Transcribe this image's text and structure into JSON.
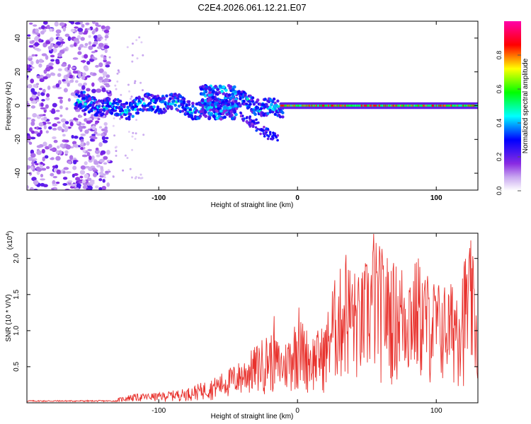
{
  "title": "C2E4.2026.061.12.21.E07",
  "chart_data": [
    {
      "type": "heatmap",
      "title": "C2E4.2026.061.12.21.E07",
      "xlabel": "Height of straight line (km)",
      "ylabel": "Frequency (Hz)",
      "xlim": [
        -195,
        130
      ],
      "ylim": [
        -50,
        50
      ],
      "xticks": [
        -100,
        0,
        100
      ],
      "yticks": [
        -40,
        -20,
        0,
        20,
        40
      ],
      "colorbar": {
        "label": "Normalized spectral amplitude",
        "range": [
          0,
          1
        ],
        "ticks": [
          "0.0",
          "0.2",
          "0.4",
          "0.6",
          "0.8"
        ],
        "colors": [
          "#ffffff",
          "#8a2be2",
          "#0000ff",
          "#00ffff",
          "#00ff00",
          "#ffff00",
          "#ff0000",
          "#ff00aa"
        ]
      },
      "description_regions": [
        {
          "x_range": [
            -195,
            -135
          ],
          "freq_range": [
            -50,
            50
          ],
          "amplitude": 0.1,
          "pattern": "scattered noise"
        },
        {
          "x_range": [
            -160,
            -10
          ],
          "freq_center": 0,
          "freq_halfwidth": 6,
          "amplitude": 0.4,
          "pattern": "wavy band"
        },
        {
          "x_range": [
            -70,
            -45
          ],
          "freq_range": [
            -8,
            12
          ],
          "amplitude": 0.35,
          "pattern": "blob"
        },
        {
          "x_range": [
            -40,
            -15
          ],
          "freq_range": [
            -22,
            -5
          ],
          "amplitude": 0.3,
          "pattern": "tail"
        },
        {
          "x_range": [
            -10,
            130
          ],
          "freq_center": 0,
          "freq_halfwidth": 3,
          "amplitude": 0.9,
          "pattern": "narrow strong line"
        }
      ]
    },
    {
      "type": "line",
      "xlabel": "Height of straight line (km)",
      "ylabel": "SNR (10 * V/V)",
      "y_multiplier": "(x10",
      "y_multiplier_exp": "4",
      "y_multiplier_close": ")",
      "xlim": [
        -195,
        130
      ],
      "ylim": [
        0,
        2.35
      ],
      "xticks": [
        -100,
        0,
        100
      ],
      "yticks": [
        0.5,
        1.0,
        1.5,
        2.0
      ],
      "ytick_labels": [
        "0.5",
        "1.0",
        "1.5",
        "2.0"
      ],
      "color": "#e8312c",
      "envelope_points": [
        {
          "x": -195,
          "y": 0.02
        },
        {
          "x": -140,
          "y": 0.03
        },
        {
          "x": -130,
          "y": 0.06
        },
        {
          "x": -120,
          "y": 0.12
        },
        {
          "x": -100,
          "y": 0.14
        },
        {
          "x": -80,
          "y": 0.2
        },
        {
          "x": -60,
          "y": 0.35
        },
        {
          "x": -40,
          "y": 0.6
        },
        {
          "x": -30,
          "y": 0.8
        },
        {
          "x": -20,
          "y": 1.0
        },
        {
          "x": -10,
          "y": 0.8
        },
        {
          "x": 0,
          "y": 1.25
        },
        {
          "x": 10,
          "y": 0.95
        },
        {
          "x": 20,
          "y": 1.1
        },
        {
          "x": 25,
          "y": 1.65
        },
        {
          "x": 35,
          "y": 2.05
        },
        {
          "x": 45,
          "y": 1.75
        },
        {
          "x": 55,
          "y": 2.3
        },
        {
          "x": 70,
          "y": 1.95
        },
        {
          "x": 85,
          "y": 2.0
        },
        {
          "x": 100,
          "y": 1.7
        },
        {
          "x": 110,
          "y": 1.65
        },
        {
          "x": 125,
          "y": 2.25
        },
        {
          "x": 130,
          "y": 1.45
        }
      ],
      "peaks": [
        {
          "x": 55,
          "y": 2.34
        },
        {
          "x": 125,
          "y": 2.25
        },
        {
          "x": 35,
          "y": 2.05
        },
        {
          "x": 87,
          "y": 2.0
        },
        {
          "x": 1,
          "y": 1.32
        },
        {
          "x": -17,
          "y": 1.2
        }
      ]
    }
  ]
}
